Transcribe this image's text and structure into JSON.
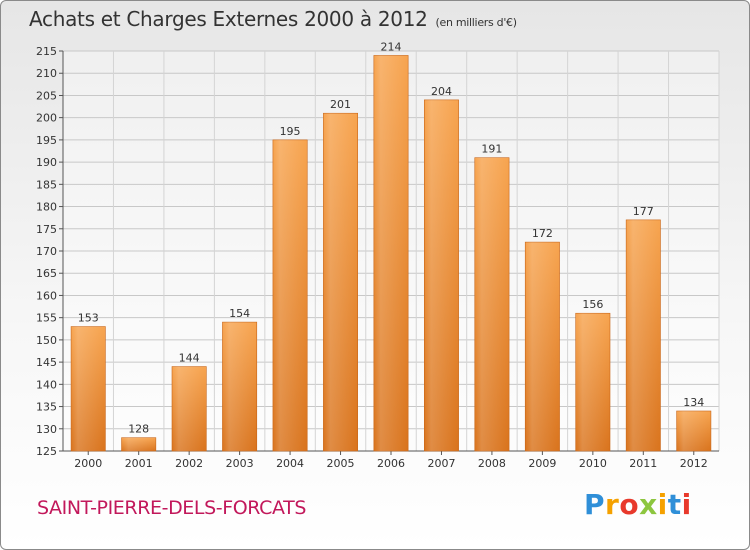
{
  "chart_data": {
    "type": "bar",
    "title": "Achats et Charges Externes 2000 à 2012",
    "subtitle": "(en milliers d'€)",
    "categories": [
      "2000",
      "2001",
      "2002",
      "2003",
      "2004",
      "2005",
      "2006",
      "2007",
      "2008",
      "2009",
      "2010",
      "2011",
      "2012"
    ],
    "values": [
      153,
      128,
      144,
      154,
      195,
      201,
      214,
      204,
      191,
      172,
      156,
      177,
      134
    ],
    "ylim": [
      125,
      215
    ],
    "yticks": [
      125,
      130,
      135,
      140,
      145,
      150,
      155,
      160,
      165,
      170,
      175,
      180,
      185,
      190,
      195,
      200,
      205,
      210,
      215
    ],
    "grid": true,
    "bar_color": "#f39c42"
  },
  "commune": "SAINT-PIERRE-DELS-FORCATS",
  "brand": {
    "letters": [
      "P",
      "r",
      "o",
      "x",
      "i",
      "t",
      "i"
    ],
    "colors": [
      "#2f8fd8",
      "#f5a100",
      "#e8392c",
      "#8dc63f",
      "#f5a100",
      "#2f8fd8",
      "#e8392c"
    ]
  }
}
